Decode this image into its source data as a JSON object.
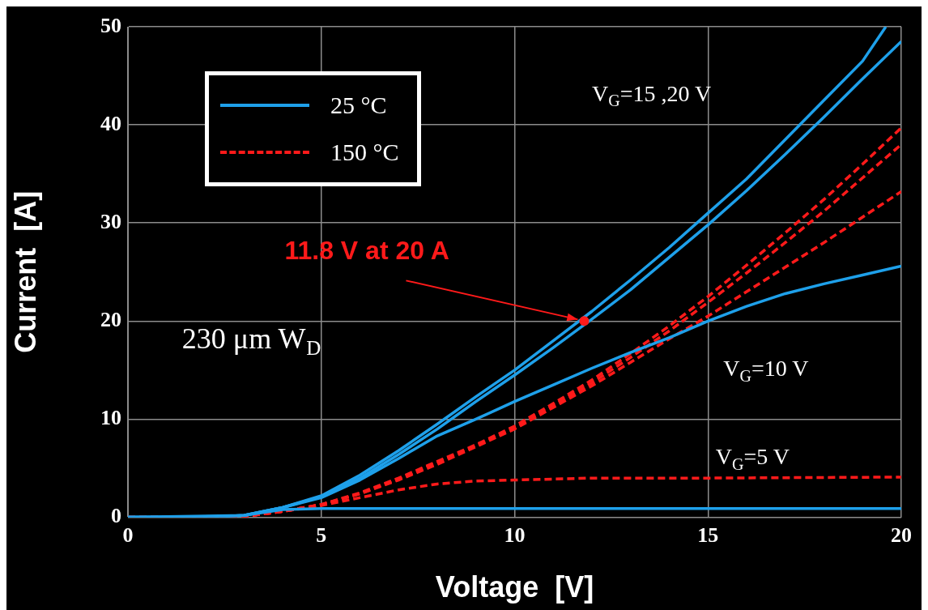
{
  "chart_data": {
    "type": "line",
    "xlabel": "Voltage  [V]",
    "ylabel": "Current  [A]",
    "xlim": [
      0,
      20
    ],
    "xticks": [
      0,
      5,
      10,
      15,
      20
    ],
    "ylim": [
      0,
      50
    ],
    "yticks": [
      0,
      10,
      20,
      30,
      40,
      50
    ],
    "grid": true,
    "legend": "top left",
    "marker": "none",
    "series": [
      {
        "name": "25 °C",
        "color": "#1ea0ea",
        "line_style": "solid",
        "x": [
          0,
          2,
          3,
          4,
          5,
          6,
          7,
          8,
          9,
          10,
          11,
          12,
          13,
          14,
          15,
          16,
          17,
          18,
          19,
          19.6
        ],
        "values": [
          0,
          0,
          0.2,
          1,
          2.2,
          4.3,
          6.8,
          9.5,
          12.3,
          15,
          18,
          21,
          24.2,
          27.5,
          31,
          34.5,
          38.5,
          42.5,
          46.5,
          50
        ]
      },
      {
        "color": "#1ea0ea",
        "line_style": "solid",
        "x": [
          0,
          2,
          3,
          4,
          5,
          6,
          7,
          8,
          9,
          10,
          11,
          12,
          13,
          14,
          15,
          16,
          17,
          18,
          19,
          20
        ],
        "values": [
          0,
          0,
          0.2,
          1,
          2.1,
          4,
          6.4,
          9,
          11.8,
          14.5,
          17.3,
          20.2,
          23.2,
          26.5,
          29.8,
          33.3,
          37,
          40.8,
          44.7,
          48.5
        ]
      },
      {
        "color": "#1ea0ea",
        "line_style": "solid",
        "x": [
          0,
          2,
          3,
          4,
          5,
          6,
          7,
          8,
          9,
          10,
          11,
          12,
          13,
          14,
          15,
          16,
          17,
          18,
          19,
          20
        ],
        "values": [
          0,
          0,
          0.2,
          1,
          2,
          3.8,
          6,
          8.3,
          10,
          11.8,
          13.5,
          15.2,
          16.8,
          18.3,
          20,
          21.5,
          22.8,
          23.8,
          24.7,
          25.6
        ]
      },
      {
        "color": "#1ea0ea",
        "line_style": "solid",
        "x": [
          0,
          3,
          4,
          5,
          10,
          15,
          20
        ],
        "values": [
          0,
          0.2,
          0.8,
          0.9,
          0.9,
          0.9,
          0.9
        ]
      },
      {
        "name": "150 °C",
        "color": "#ff1a1a",
        "line_style": "dashed",
        "x": [
          0,
          3,
          4,
          5,
          6,
          7,
          8,
          9,
          10,
          11,
          12,
          13,
          14,
          15,
          16,
          17,
          18,
          19,
          20
        ],
        "values": [
          0,
          0.1,
          0.6,
          1.3,
          2.5,
          4,
          5.7,
          7.4,
          9.3,
          11.6,
          14,
          16.7,
          19.5,
          22.5,
          25.7,
          29,
          32.4,
          36,
          39.7
        ]
      },
      {
        "color": "#ff1a1a",
        "line_style": "dashed",
        "x": [
          0,
          3,
          4,
          5,
          6,
          7,
          8,
          9,
          10,
          11,
          12,
          13,
          14,
          15,
          16,
          17,
          18,
          19,
          20
        ],
        "values": [
          0,
          0.1,
          0.6,
          1.3,
          2.4,
          3.9,
          5.6,
          7.3,
          9.1,
          11.4,
          13.7,
          16.3,
          19,
          21.9,
          24.9,
          28,
          31.2,
          34.6,
          38
        ]
      },
      {
        "color": "#ff1a1a",
        "line_style": "dashed",
        "x": [
          0,
          3,
          4,
          5,
          6,
          7,
          8,
          9,
          10,
          11,
          12,
          13,
          14,
          15,
          16,
          17,
          18,
          19,
          20
        ],
        "values": [
          0,
          0.1,
          0.6,
          1.3,
          2.4,
          3.8,
          5.4,
          7.2,
          9,
          11.2,
          13.4,
          15.8,
          18.2,
          20.5,
          23,
          25.5,
          28,
          30.6,
          33.2
        ]
      },
      {
        "color": "#ff1a1a",
        "line_style": "dashed",
        "x": [
          0,
          3,
          4,
          5,
          6,
          7,
          8,
          9,
          10,
          12,
          15,
          20
        ],
        "values": [
          0,
          0.1,
          0.6,
          1.2,
          2,
          2.8,
          3.4,
          3.7,
          3.8,
          4,
          4,
          4.1
        ]
      }
    ],
    "annotations": [
      {
        "text": "11.8 V at 20 A",
        "x": 11.8,
        "y": 20
      },
      "V$_{G}$=15 ,20 V",
      "V$_{G}$=10 V",
      "V$_{G}$=5 V",
      "230 μm W$_{D}$"
    ]
  }
}
